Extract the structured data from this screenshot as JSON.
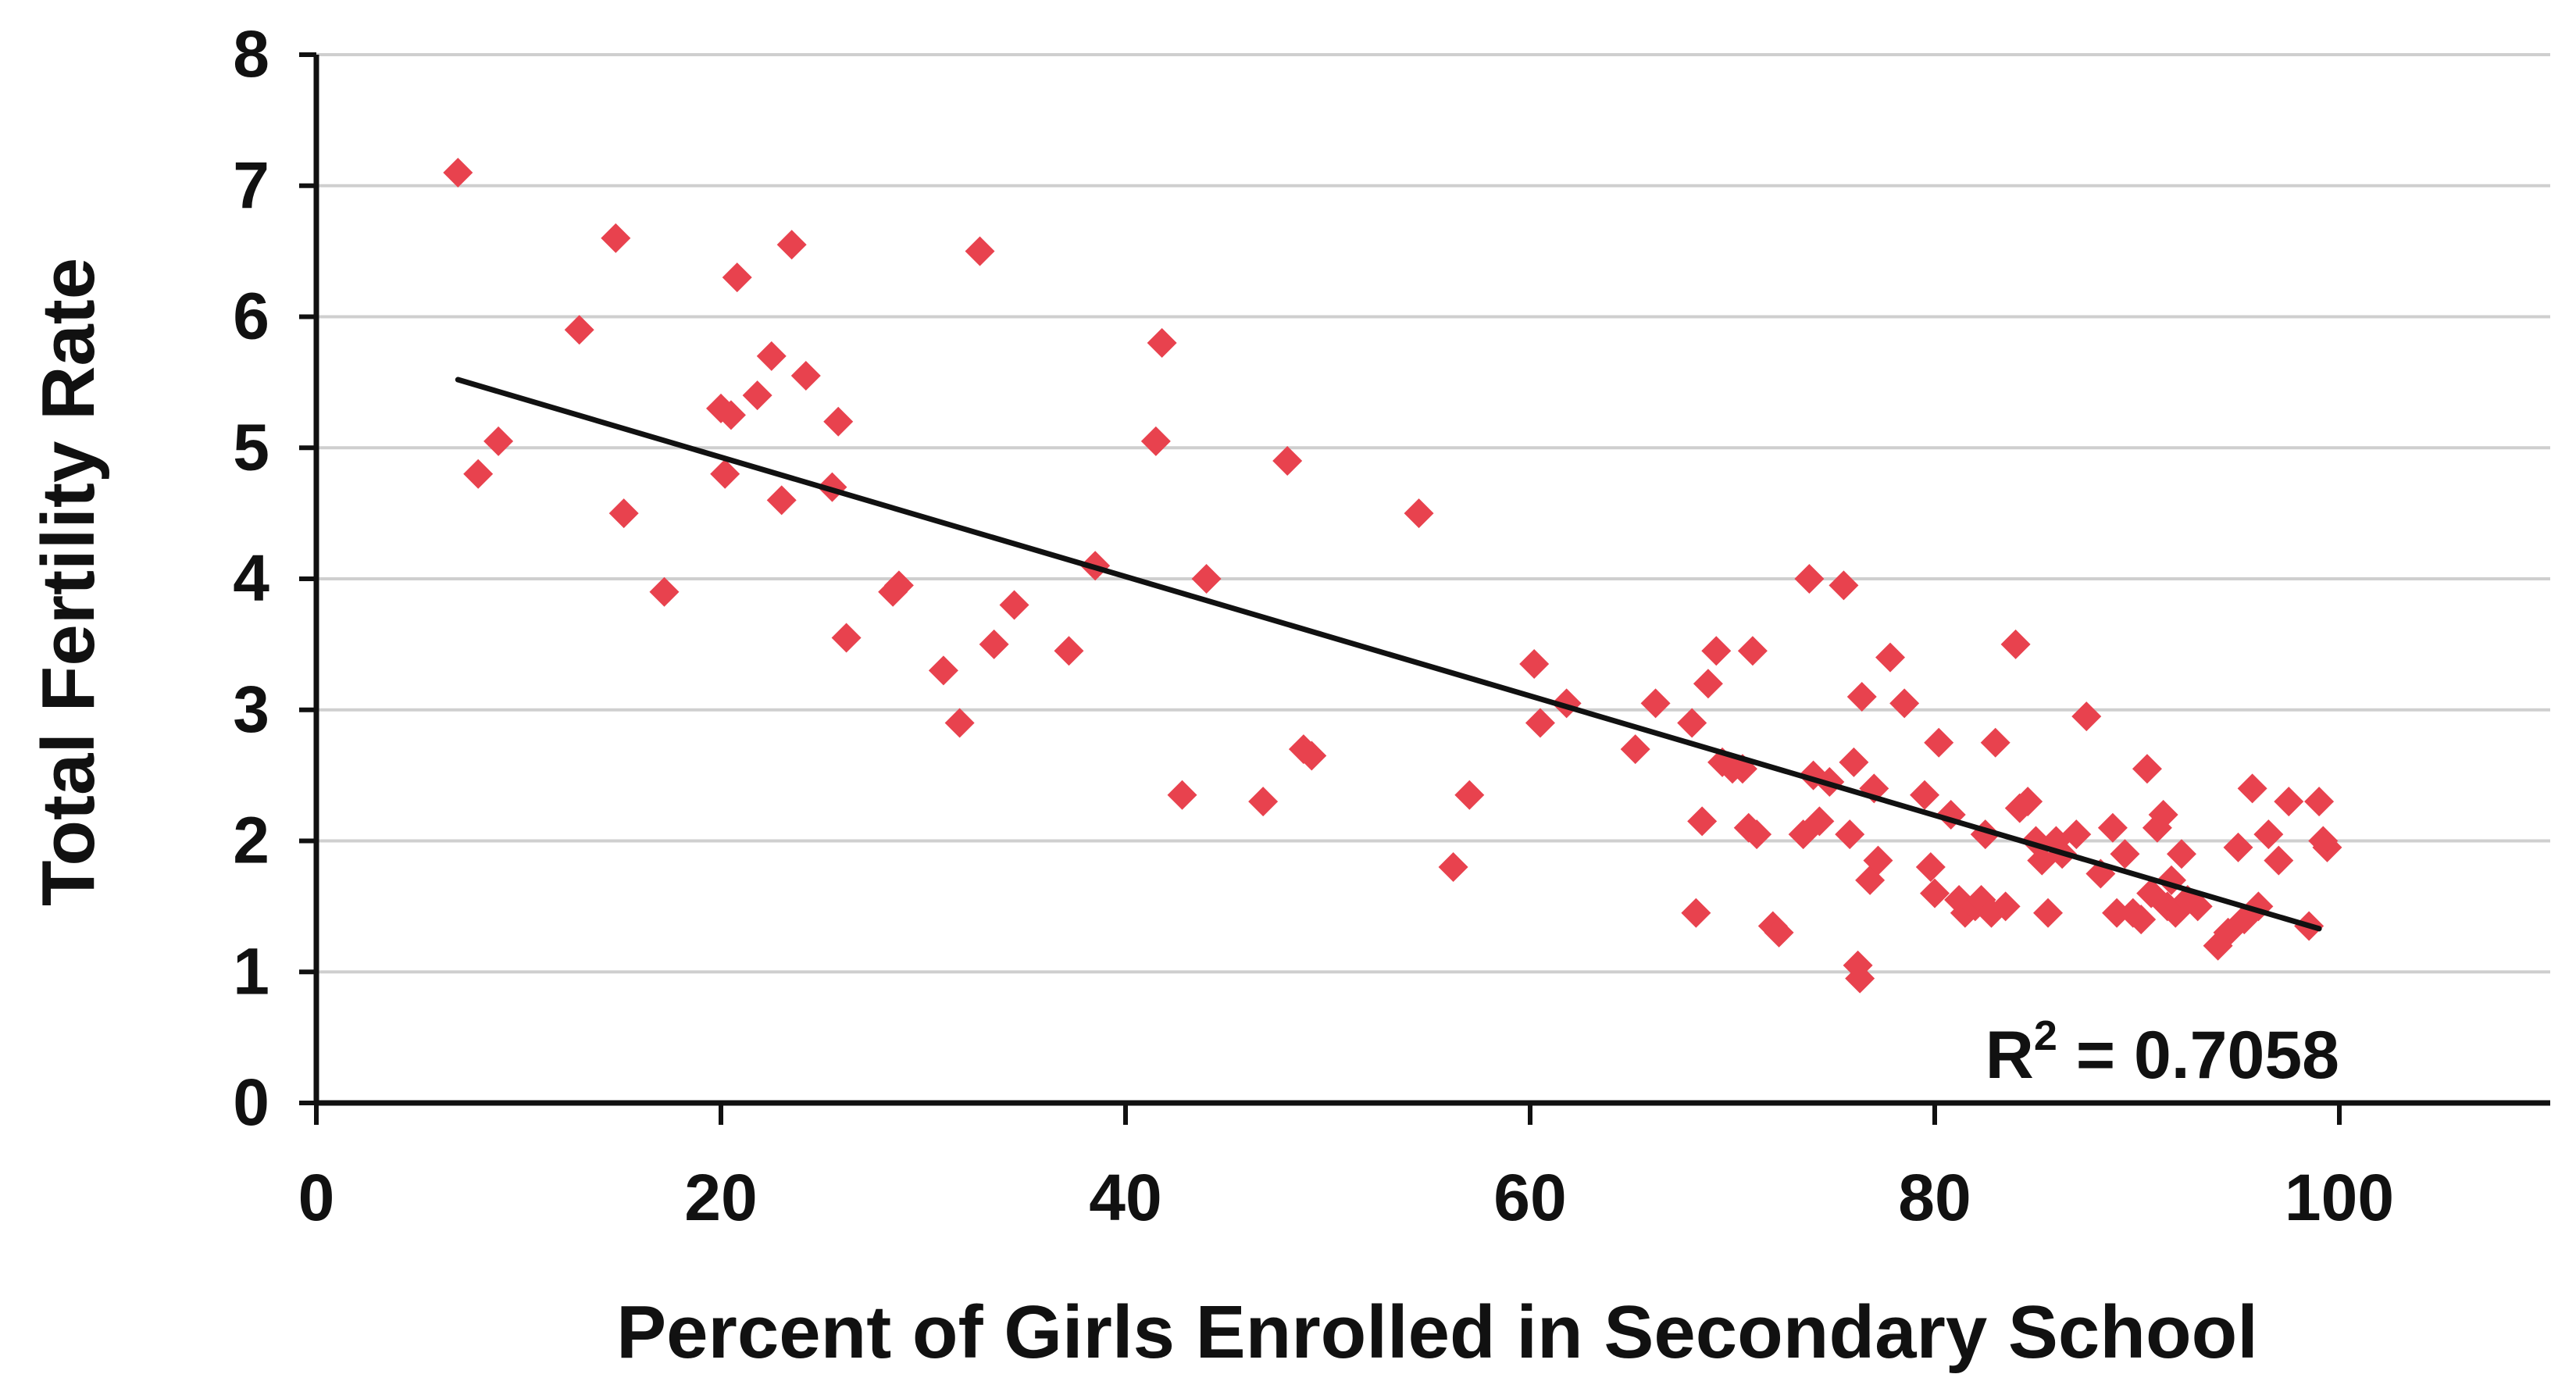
{
  "chart_data": {
    "type": "scatter",
    "title": "",
    "xlabel": "Percent of Girls Enrolled in Secondary School",
    "ylabel": "Total Fertility Rate",
    "xlim": [
      0,
      110
    ],
    "ylim": [
      0,
      8
    ],
    "x_ticks": [
      "0",
      "20",
      "40",
      "60",
      "80",
      "100"
    ],
    "y_ticks": [
      "0",
      "1",
      "2",
      "3",
      "4",
      "5",
      "6",
      "7",
      "8"
    ],
    "grid": "horizontal",
    "colors": {
      "points": "#e8424e",
      "trendline": "#111111",
      "grid": "#cfcfcf",
      "axis": "#111111"
    },
    "annotation": {
      "base": "R",
      "superscript": "2",
      "value": " = 0.7058"
    },
    "trendline": {
      "x": [
        7,
        99
      ],
      "y": [
        5.52,
        1.33
      ]
    },
    "points": [
      [
        7,
        7.1
      ],
      [
        8,
        4.8
      ],
      [
        9,
        5.05
      ],
      [
        13,
        5.9
      ],
      [
        14.8,
        6.6
      ],
      [
        15.2,
        4.5
      ],
      [
        17.2,
        3.9
      ],
      [
        20,
        5.3
      ],
      [
        20.2,
        4.8
      ],
      [
        20.5,
        5.25
      ],
      [
        20.8,
        6.3
      ],
      [
        21.8,
        5.4
      ],
      [
        22.5,
        5.7
      ],
      [
        23,
        4.6
      ],
      [
        23.5,
        6.55
      ],
      [
        24.2,
        5.55
      ],
      [
        25.5,
        4.7
      ],
      [
        25.8,
        5.2
      ],
      [
        26.2,
        3.55
      ],
      [
        28.5,
        3.9
      ],
      [
        28.8,
        3.95
      ],
      [
        31,
        3.3
      ],
      [
        31.8,
        2.9
      ],
      [
        32.8,
        6.5
      ],
      [
        33.5,
        3.5
      ],
      [
        34.5,
        3.8
      ],
      [
        37.2,
        3.45
      ],
      [
        38.5,
        4.1
      ],
      [
        41.5,
        5.05
      ],
      [
        41.8,
        5.8
      ],
      [
        42.8,
        2.35
      ],
      [
        44,
        4
      ],
      [
        46.8,
        2.3
      ],
      [
        48,
        4.9
      ],
      [
        48.8,
        2.7
      ],
      [
        49.2,
        2.65
      ],
      [
        54.5,
        4.5
      ],
      [
        56.2,
        1.8
      ],
      [
        57,
        2.35
      ],
      [
        60.2,
        3.35
      ],
      [
        60.5,
        2.9
      ],
      [
        61.8,
        3.05
      ],
      [
        65.2,
        2.7
      ],
      [
        66.2,
        3.05
      ],
      [
        68,
        2.9
      ],
      [
        68.2,
        1.45
      ],
      [
        68.5,
        2.15
      ],
      [
        68.8,
        3.2
      ],
      [
        69.2,
        3.45
      ],
      [
        69.5,
        2.6
      ],
      [
        70,
        2.55
      ],
      [
        70.5,
        2.55
      ],
      [
        70.8,
        2.1
      ],
      [
        71,
        3.45
      ],
      [
        71.2,
        2.05
      ],
      [
        72,
        1.35
      ],
      [
        72.3,
        1.3
      ],
      [
        73.5,
        2.05
      ],
      [
        73.8,
        4
      ],
      [
        74,
        2.5
      ],
      [
        74.3,
        2.15
      ],
      [
        74.8,
        2.45
      ],
      [
        75.5,
        3.95
      ],
      [
        75.8,
        2.05
      ],
      [
        76,
        2.6
      ],
      [
        76.2,
        1.05
      ],
      [
        76.3,
        0.95
      ],
      [
        76.4,
        3.1
      ],
      [
        76.8,
        1.7
      ],
      [
        77,
        2.4
      ],
      [
        77.2,
        1.85
      ],
      [
        77.8,
        3.4
      ],
      [
        78.5,
        3.05
      ],
      [
        79.5,
        2.35
      ],
      [
        79.8,
        1.8
      ],
      [
        80,
        1.6
      ],
      [
        80.2,
        2.75
      ],
      [
        80.8,
        2.2
      ],
      [
        81.2,
        1.55
      ],
      [
        81.5,
        1.45
      ],
      [
        82,
        1.5
      ],
      [
        82.3,
        1.55
      ],
      [
        82.5,
        2.05
      ],
      [
        82.8,
        1.45
      ],
      [
        83,
        2.75
      ],
      [
        83.5,
        1.5
      ],
      [
        84,
        3.5
      ],
      [
        84.2,
        2.25
      ],
      [
        84.6,
        2.3
      ],
      [
        85,
        2
      ],
      [
        85.3,
        1.85
      ],
      [
        85.6,
        1.45
      ],
      [
        86,
        2
      ],
      [
        86.3,
        1.9
      ],
      [
        87,
        2.05
      ],
      [
        87.5,
        2.95
      ],
      [
        88.2,
        1.75
      ],
      [
        88.8,
        2.1
      ],
      [
        89,
        1.45
      ],
      [
        89.4,
        1.9
      ],
      [
        89.8,
        1.45
      ],
      [
        90.2,
        1.4
      ],
      [
        90.5,
        2.55
      ],
      [
        90.7,
        1.6
      ],
      [
        91,
        2.1
      ],
      [
        91.3,
        2.2
      ],
      [
        91.5,
        1.5
      ],
      [
        91.7,
        1.7
      ],
      [
        91.9,
        1.45
      ],
      [
        92.2,
        1.9
      ],
      [
        92.5,
        1.55
      ],
      [
        93,
        1.5
      ],
      [
        94,
        1.2
      ],
      [
        94.5,
        1.3
      ],
      [
        95,
        1.95
      ],
      [
        95.3,
        1.4
      ],
      [
        95.7,
        2.4
      ],
      [
        96,
        1.5
      ],
      [
        96.5,
        2.05
      ],
      [
        97,
        1.85
      ],
      [
        97.5,
        2.3
      ],
      [
        98.5,
        1.35
      ],
      [
        99,
        2.3
      ],
      [
        99.2,
        2
      ],
      [
        99.4,
        1.95
      ]
    ]
  }
}
